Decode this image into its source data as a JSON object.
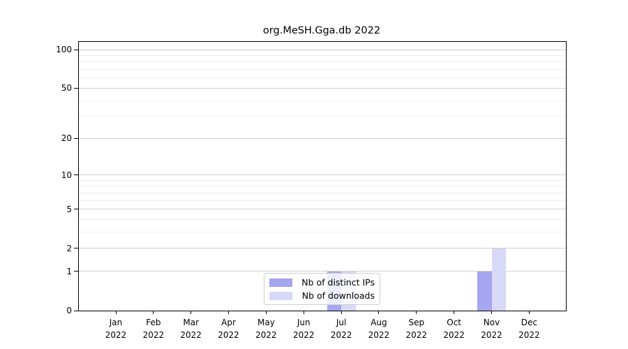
{
  "chart_data": {
    "type": "bar",
    "title": "org.MeSH.Gga.db 2022",
    "categories": [
      "Jan 2022",
      "Feb 2022",
      "Mar 2022",
      "Apr 2022",
      "May 2022",
      "Jun 2022",
      "Jul 2022",
      "Aug 2022",
      "Sep 2022",
      "Oct 2022",
      "Nov 2022",
      "Dec 2022"
    ],
    "series": [
      {
        "name": "Nb of distinct IPs",
        "color": "#a5a5f0",
        "values": [
          0,
          0,
          0,
          0,
          0,
          0,
          1,
          0,
          0,
          0,
          1,
          0
        ]
      },
      {
        "name": "Nb of downloads",
        "color": "#d8d8f8",
        "values": [
          0,
          0,
          0,
          0,
          0,
          0,
          1,
          0,
          0,
          0,
          2,
          0
        ]
      }
    ],
    "xlabel": "",
    "ylabel": "",
    "yscale": "log1p",
    "ylim": [
      0,
      115
    ],
    "yticks": [
      0,
      1,
      2,
      5,
      10,
      20,
      50,
      100
    ],
    "minor_yticks": [
      3,
      4,
      6,
      7,
      8,
      9,
      30,
      40,
      60,
      70,
      80,
      90
    ],
    "grid": true,
    "legend_position": "lower center inside"
  },
  "colors": {
    "grid_major": "#cfcfcf",
    "grid_minor": "#eeeeee",
    "axis": "#000000",
    "legend_border": "#cccccc"
  }
}
